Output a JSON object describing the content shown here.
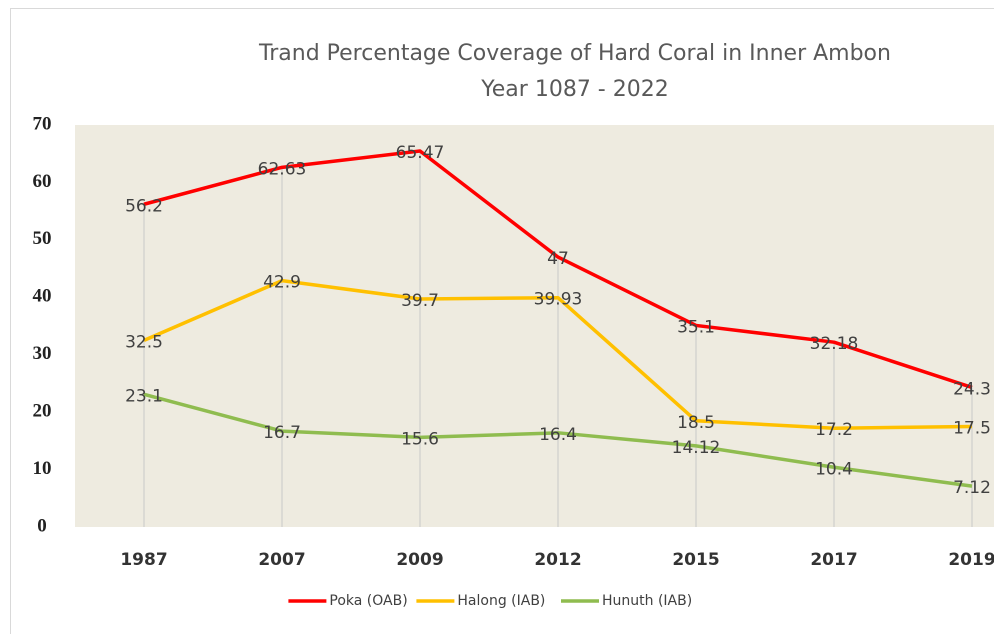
{
  "chart_data": {
    "type": "line",
    "title": "Trand Percentage Coverage  of  Hard Coral in Inner Ambon",
    "subtitle": "Year 1087 - 2022",
    "categories": [
      "1987",
      "2007",
      "2009",
      "2012",
      "2015",
      "2017",
      "2019"
    ],
    "series": [
      {
        "name": "Poka (OAB)",
        "color": "#ff0000",
        "values": [
          56.2,
          62.63,
          65.47,
          47,
          35.1,
          32.18,
          24.3
        ]
      },
      {
        "name": "Halong (IAB)",
        "color": "#ffc000",
        "values": [
          32.5,
          42.9,
          39.7,
          39.93,
          18.5,
          17.2,
          17.5
        ]
      },
      {
        "name": "Hunuth (IAB)",
        "color": "#8fbc4f",
        "values": [
          23.1,
          16.7,
          15.6,
          16.4,
          14.12,
          10.4,
          7.12
        ]
      }
    ],
    "ylim": [
      0,
      70
    ],
    "yticks": [
      0,
      10,
      20,
      30,
      40,
      50,
      60,
      70
    ],
    "legend": "bottom"
  }
}
